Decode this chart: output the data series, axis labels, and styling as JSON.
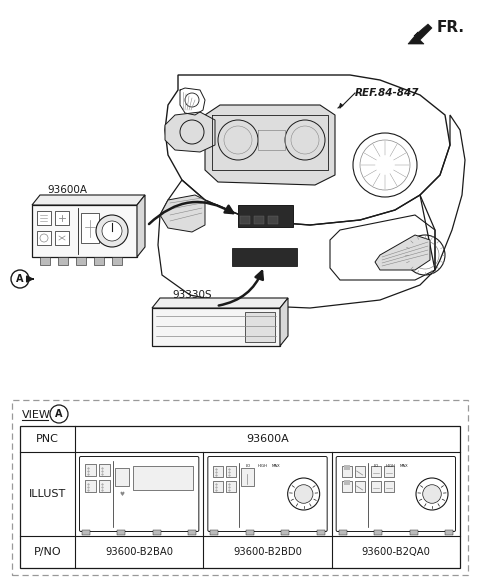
{
  "fr_label": "FR.",
  "ref_label": "REF.84-847",
  "part_93600A_label": "93600A",
  "part_93330S_label": "93330S",
  "circle_A_label": "A",
  "view_label": "VIEW",
  "pnc_label": "PNC",
  "pnc_value": "93600A",
  "illust_label": "ILLUST",
  "pno_label": "P/NO",
  "pno_values": [
    "93600-B2BA0",
    "93600-B2BD0",
    "93600-B2QA0"
  ],
  "bg_color": "#ffffff",
  "line_color": "#1a1a1a",
  "gray1": "#888888",
  "gray2": "#bbbbbb",
  "gray3": "#dddddd"
}
